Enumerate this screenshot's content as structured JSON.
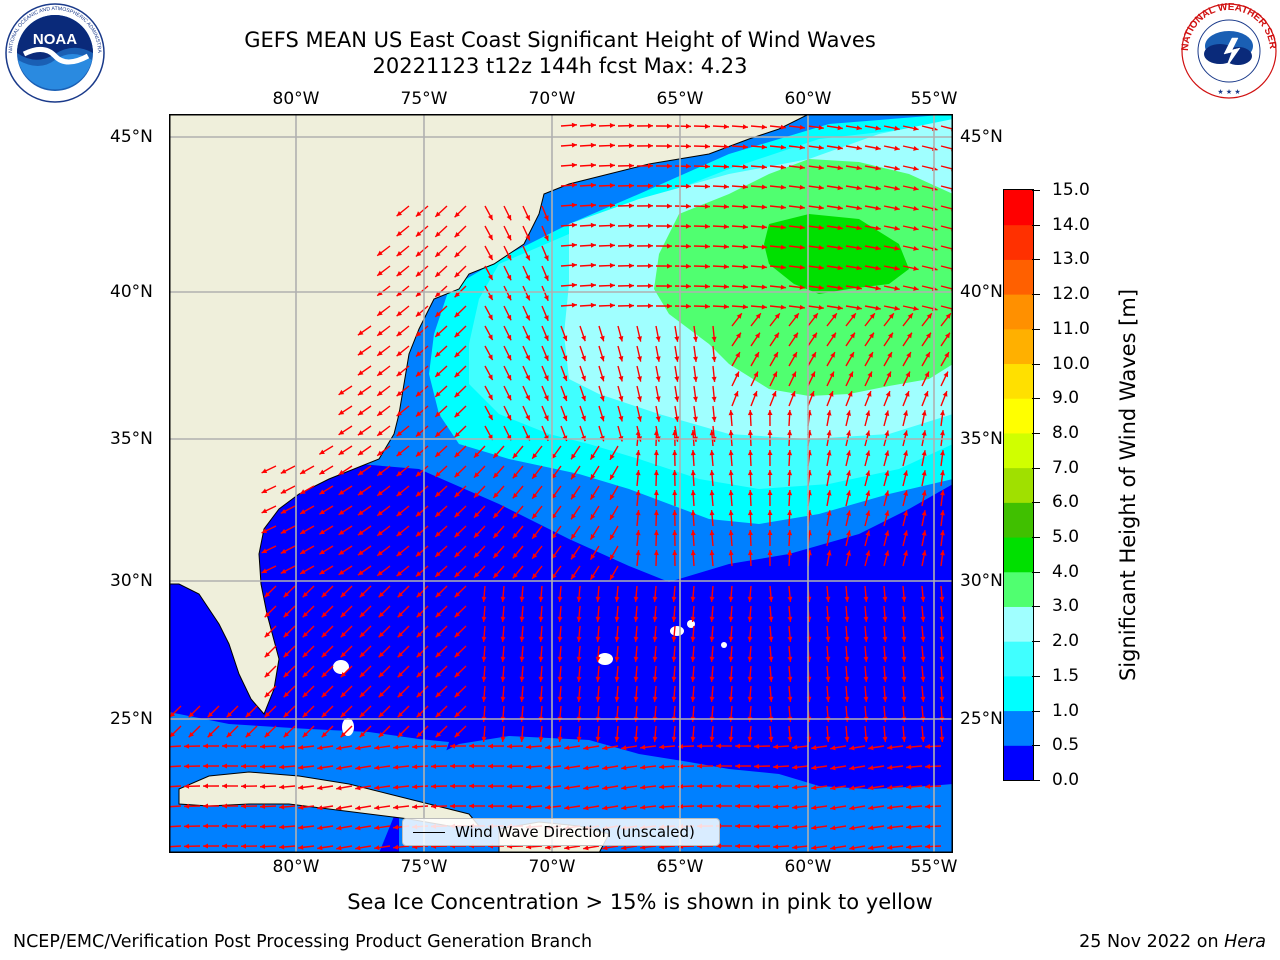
{
  "title": {
    "line1": "GEFS MEAN US East Coast Significant Height of Wind Waves",
    "line2": "20221123 t12z 144h fcst   Max: 4.23"
  },
  "axes": {
    "lon_ticks": [
      "80°W",
      "75°W",
      "70°W",
      "65°W",
      "60°W",
      "55°W"
    ],
    "lat_ticks": [
      "45°N",
      "40°N",
      "35°N",
      "30°N",
      "25°N"
    ],
    "lon_values": [
      -80,
      -75,
      -70,
      -65,
      -60,
      -55
    ],
    "lat_values": [
      45,
      40,
      35,
      30,
      25
    ],
    "lon_range": [
      -85,
      -54.3
    ],
    "lat_range": [
      20.4,
      46
    ]
  },
  "legend": {
    "label": "Wind Wave Direction (unscaled)"
  },
  "colorbar": {
    "title": "Significant Height of Wind Waves [m]",
    "ticks": [
      "0.0",
      "0.5",
      "1.0",
      "1.5",
      "2.0",
      "3.0",
      "4.0",
      "5.0",
      "6.0",
      "7.0",
      "8.0",
      "9.0",
      "10.0",
      "11.0",
      "12.0",
      "13.0",
      "14.0",
      "15.0"
    ],
    "colors": [
      "#0000ff",
      "#0080ff",
      "#00ffff",
      "#40ffff",
      "#a0ffff",
      "#50ff70",
      "#00e000",
      "#40c000",
      "#a0e000",
      "#d0ff00",
      "#ffff00",
      "#ffe000",
      "#ffb000",
      "#ff9000",
      "#ff6000",
      "#ff3000",
      "#ff0000"
    ]
  },
  "colors": {
    "land": "#efefdb",
    "ocean_calm": "#0000ff",
    "vector": "#ff0000",
    "grid": "#b0b0b0"
  },
  "logos": {
    "noaa_text": "NOAA",
    "noaa_ring": "NATIONAL OCEANIC AND ATMOSPHERIC ADMINISTRATION · U.S. DEPARTMENT OF COMMERCE",
    "nws_ring": "NATIONAL WEATHER SERVICE"
  },
  "note": "Sea Ice Concentration > 15% is shown in pink to yellow",
  "footer": {
    "left": "NCEP/EMC/Verification Post Processing Product Generation Branch",
    "date": "25 Nov 2022 on",
    "machine": "Hera"
  }
}
